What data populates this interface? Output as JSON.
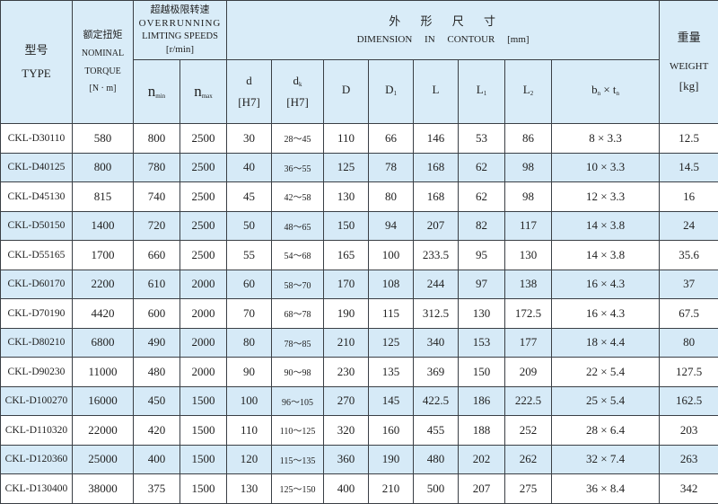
{
  "header": {
    "type_cn": "型号",
    "type_en": "TYPE",
    "torque_cn": "额定扭矩",
    "torque_en1": "NOMINAL",
    "torque_en2": "TORQUE",
    "torque_unit": "[N · m]",
    "speed_cn": "超越极限转速",
    "speed_en1": "OVERRUNNING",
    "speed_en2": "LIMTING SPEEDS",
    "speed_unit": "[r/min]",
    "nmin": {
      "base": "n",
      "sub": "min"
    },
    "nmax": {
      "base": "n",
      "sub": "max"
    },
    "dim_cn": "外　 形　 尺　 寸",
    "dim_en": "DIMENSION　 IN　 CONTOUR　 [mm]",
    "d": {
      "base": "d",
      "unit": "[H7]"
    },
    "dk": {
      "base": "d",
      "sub": "k",
      "unit": "[H7]"
    },
    "D": "D",
    "D1": {
      "base": "D",
      "sub": "1"
    },
    "L": "L",
    "L1": {
      "base": "L",
      "sub": "1"
    },
    "L2": {
      "base": "L",
      "sub": "2"
    },
    "bt": {
      "b": "b",
      "bsub": "n",
      "x": " × ",
      "t": "t",
      "tsub": "n"
    },
    "weight_cn": "重量",
    "weight_en": "WEIGHT",
    "weight_unit": "[kg]"
  },
  "colors": {
    "header_bg": "#d9ecf8",
    "alt_row_bg": "#d6eaf7",
    "border": "#3a3f45"
  },
  "rows": [
    [
      "CKL-D30110",
      "580",
      "800",
      "2500",
      "30",
      "28～45",
      "110",
      "66",
      "146",
      "53",
      "86",
      "8 × 3.3",
      "12.5"
    ],
    [
      "CKL-D40125",
      "800",
      "780",
      "2500",
      "40",
      "36～55",
      "125",
      "78",
      "168",
      "62",
      "98",
      "10 × 3.3",
      "14.5"
    ],
    [
      "CKL-D45130",
      "815",
      "740",
      "2500",
      "45",
      "42～58",
      "130",
      "80",
      "168",
      "62",
      "98",
      "12 × 3.3",
      "16"
    ],
    [
      "CKL-D50150",
      "1400",
      "720",
      "2500",
      "50",
      "48～65",
      "150",
      "94",
      "207",
      "82",
      "117",
      "14 × 3.8",
      "24"
    ],
    [
      "CKL-D55165",
      "1700",
      "660",
      "2500",
      "55",
      "54～68",
      "165",
      "100",
      "233.5",
      "95",
      "130",
      "14 × 3.8",
      "35.6"
    ],
    [
      "CKL-D60170",
      "2200",
      "610",
      "2000",
      "60",
      "58～70",
      "170",
      "108",
      "244",
      "97",
      "138",
      "16 × 4.3",
      "37"
    ],
    [
      "CKL-D70190",
      "4420",
      "600",
      "2000",
      "70",
      "68～78",
      "190",
      "115",
      "312.5",
      "130",
      "172.5",
      "16 × 4.3",
      "67.5"
    ],
    [
      "CKL-D80210",
      "6800",
      "490",
      "2000",
      "80",
      "78～85",
      "210",
      "125",
      "340",
      "153",
      "177",
      "18 × 4.4",
      "80"
    ],
    [
      "CKL-D90230",
      "11000",
      "480",
      "2000",
      "90",
      "90～98",
      "230",
      "135",
      "369",
      "150",
      "209",
      "22 × 5.4",
      "127.5"
    ],
    [
      "CKL-D100270",
      "16000",
      "450",
      "1500",
      "100",
      "96～105",
      "270",
      "145",
      "422.5",
      "186",
      "222.5",
      "25 × 5.4",
      "162.5"
    ],
    [
      "CKL-D110320",
      "22000",
      "420",
      "1500",
      "110",
      "110～125",
      "320",
      "160",
      "455",
      "188",
      "252",
      "28 × 6.4",
      "203"
    ],
    [
      "CKL-D120360",
      "25000",
      "400",
      "1500",
      "120",
      "115～135",
      "360",
      "190",
      "480",
      "202",
      "262",
      "32 × 7.4",
      "263"
    ],
    [
      "CKL-D130400",
      "38000",
      "375",
      "1500",
      "130",
      "125～150",
      "400",
      "210",
      "500",
      "207",
      "275",
      "36 × 8.4",
      "342"
    ]
  ]
}
